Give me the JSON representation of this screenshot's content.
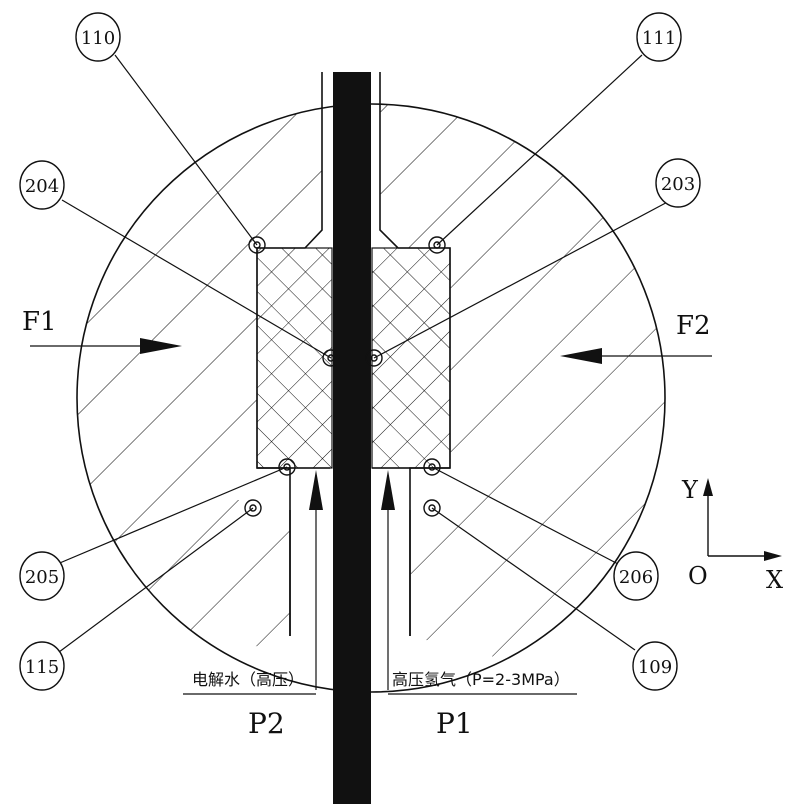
{
  "colors": {
    "ink": "#111111",
    "paper": "#ffffff"
  },
  "callouts": {
    "c110": "110",
    "c111": "111",
    "c204": "204",
    "c203": "203",
    "c205": "205",
    "c206": "206",
    "c115": "115",
    "c109": "109"
  },
  "forces": {
    "f1": "F1",
    "f2": "F2"
  },
  "axes": {
    "y": "Y",
    "origin": "O",
    "x": "X"
  },
  "inlets": {
    "left_note": "电解水（高压）",
    "left_pressure": "P2",
    "right_note": "高压氢气（P=2-3MPa）",
    "right_pressure": "P1"
  }
}
